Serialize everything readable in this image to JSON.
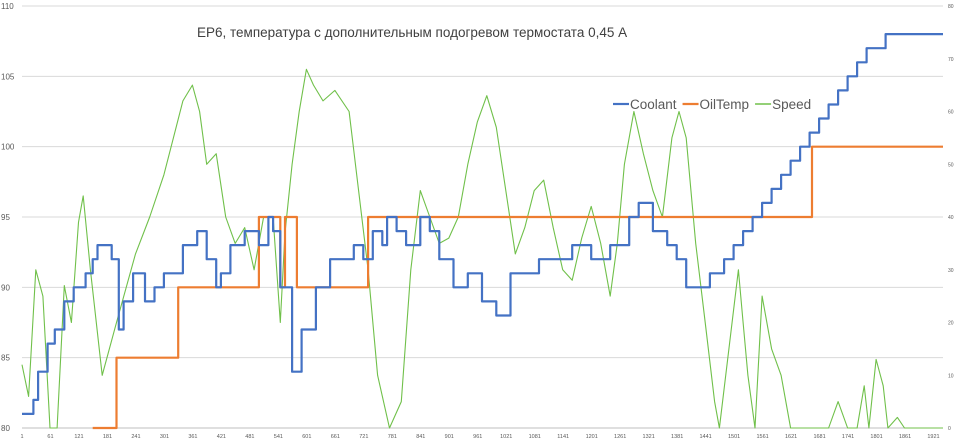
{
  "chart_data": {
    "type": "line",
    "title": "EP6, температура с дополнительным подогревом термостата 0,45 А",
    "xlabel": "",
    "ylabel": "",
    "x_range": [
      1,
      1941
    ],
    "x_ticks": [
      1,
      61,
      121,
      181,
      241,
      301,
      361,
      421,
      481,
      541,
      601,
      661,
      721,
      781,
      841,
      901,
      961,
      1021,
      1081,
      1141,
      1201,
      1261,
      1321,
      1381,
      1441,
      1501,
      1561,
      1621,
      1681,
      1741,
      1801,
      1861,
      1921
    ],
    "y_left": {
      "ylim": [
        80,
        110
      ],
      "ticks": [
        80,
        85,
        90,
        95,
        100,
        105,
        110
      ]
    },
    "y_right": {
      "ylim": [
        0,
        80
      ],
      "ticks": [
        0,
        10,
        20,
        30,
        40,
        50,
        60,
        70,
        80
      ]
    },
    "grid": "horizontal",
    "legend_position": "upper-right",
    "series": [
      {
        "name": "Coolant",
        "axis": "left",
        "color": "#4472C4",
        "step": true,
        "points": [
          [
            1,
            81
          ],
          [
            25,
            82
          ],
          [
            35,
            84
          ],
          [
            55,
            86
          ],
          [
            70,
            87
          ],
          [
            90,
            89
          ],
          [
            110,
            90
          ],
          [
            135,
            91
          ],
          [
            150,
            92
          ],
          [
            160,
            93
          ],
          [
            190,
            92
          ],
          [
            205,
            87
          ],
          [
            215,
            89
          ],
          [
            235,
            91
          ],
          [
            260,
            89
          ],
          [
            280,
            90
          ],
          [
            300,
            91
          ],
          [
            340,
            93
          ],
          [
            370,
            94
          ],
          [
            390,
            92
          ],
          [
            410,
            90
          ],
          [
            420,
            91
          ],
          [
            440,
            93
          ],
          [
            470,
            94
          ],
          [
            500,
            93
          ],
          [
            520,
            95
          ],
          [
            530,
            94
          ],
          [
            545,
            90
          ],
          [
            570,
            84
          ],
          [
            590,
            87
          ],
          [
            620,
            90
          ],
          [
            650,
            92
          ],
          [
            700,
            93
          ],
          [
            720,
            92
          ],
          [
            740,
            94
          ],
          [
            760,
            93
          ],
          [
            770,
            95
          ],
          [
            790,
            94
          ],
          [
            810,
            93
          ],
          [
            840,
            95
          ],
          [
            860,
            94
          ],
          [
            880,
            92
          ],
          [
            910,
            90
          ],
          [
            940,
            91
          ],
          [
            970,
            89
          ],
          [
            1000,
            88
          ],
          [
            1030,
            91
          ],
          [
            1060,
            91
          ],
          [
            1090,
            92
          ],
          [
            1130,
            92
          ],
          [
            1160,
            93
          ],
          [
            1200,
            92
          ],
          [
            1240,
            93
          ],
          [
            1280,
            95
          ],
          [
            1300,
            96
          ],
          [
            1330,
            94
          ],
          [
            1360,
            93
          ],
          [
            1380,
            92
          ],
          [
            1400,
            90
          ],
          [
            1430,
            90
          ],
          [
            1450,
            91
          ],
          [
            1480,
            92
          ],
          [
            1500,
            93
          ],
          [
            1520,
            94
          ],
          [
            1540,
            95
          ],
          [
            1560,
            96
          ],
          [
            1580,
            97
          ],
          [
            1600,
            98
          ],
          [
            1620,
            99
          ],
          [
            1640,
            100
          ],
          [
            1660,
            101
          ],
          [
            1680,
            102
          ],
          [
            1700,
            103
          ],
          [
            1720,
            104
          ],
          [
            1740,
            105
          ],
          [
            1760,
            106
          ],
          [
            1780,
            107
          ],
          [
            1800,
            107
          ],
          [
            1820,
            108
          ],
          [
            1850,
            108
          ],
          [
            1880,
            108
          ],
          [
            1941,
            108
          ]
        ]
      },
      {
        "name": "OilTemp",
        "axis": "left",
        "color": "#ED7D31",
        "step": true,
        "points": [
          [
            150,
            80
          ],
          [
            200,
            85
          ],
          [
            210,
            85
          ],
          [
            330,
            90
          ],
          [
            500,
            95
          ],
          [
            545,
            90
          ],
          [
            555,
            95
          ],
          [
            580,
            90
          ],
          [
            720,
            90
          ],
          [
            730,
            95
          ],
          [
            1660,
            95
          ],
          [
            1665,
            100
          ],
          [
            1941,
            100
          ]
        ]
      },
      {
        "name": "Speed",
        "axis": "right",
        "color": "#70C04A",
        "step": false,
        "points": [
          [
            1,
            12
          ],
          [
            15,
            6
          ],
          [
            30,
            30
          ],
          [
            45,
            25
          ],
          [
            60,
            0
          ],
          [
            75,
            0
          ],
          [
            90,
            27
          ],
          [
            105,
            20
          ],
          [
            120,
            39
          ],
          [
            130,
            44
          ],
          [
            145,
            30
          ],
          [
            170,
            10
          ],
          [
            200,
            20
          ],
          [
            240,
            33
          ],
          [
            270,
            40
          ],
          [
            300,
            48
          ],
          [
            320,
            55
          ],
          [
            340,
            62
          ],
          [
            360,
            65
          ],
          [
            375,
            60
          ],
          [
            390,
            50
          ],
          [
            410,
            52
          ],
          [
            430,
            40
          ],
          [
            450,
            35
          ],
          [
            470,
            38
          ],
          [
            490,
            30
          ],
          [
            510,
            40
          ],
          [
            530,
            40
          ],
          [
            545,
            20
          ],
          [
            555,
            37
          ],
          [
            570,
            50
          ],
          [
            585,
            60
          ],
          [
            600,
            68
          ],
          [
            615,
            65
          ],
          [
            635,
            62
          ],
          [
            660,
            64
          ],
          [
            690,
            60
          ],
          [
            710,
            45
          ],
          [
            730,
            30
          ],
          [
            750,
            10
          ],
          [
            775,
            0
          ],
          [
            800,
            5
          ],
          [
            820,
            30
          ],
          [
            840,
            45
          ],
          [
            860,
            40
          ],
          [
            880,
            35
          ],
          [
            900,
            36
          ],
          [
            920,
            40
          ],
          [
            940,
            50
          ],
          [
            960,
            58
          ],
          [
            980,
            63
          ],
          [
            1000,
            57
          ],
          [
            1020,
            45
          ],
          [
            1040,
            33
          ],
          [
            1060,
            38
          ],
          [
            1080,
            45
          ],
          [
            1100,
            47
          ],
          [
            1120,
            38
          ],
          [
            1140,
            30
          ],
          [
            1160,
            28
          ],
          [
            1180,
            36
          ],
          [
            1200,
            42
          ],
          [
            1220,
            35
          ],
          [
            1240,
            25
          ],
          [
            1255,
            35
          ],
          [
            1270,
            50
          ],
          [
            1290,
            60
          ],
          [
            1310,
            52
          ],
          [
            1330,
            45
          ],
          [
            1350,
            40
          ],
          [
            1370,
            55
          ],
          [
            1385,
            60
          ],
          [
            1400,
            55
          ],
          [
            1420,
            35
          ],
          [
            1440,
            20
          ],
          [
            1460,
            5
          ],
          [
            1470,
            0
          ],
          [
            1490,
            15
          ],
          [
            1510,
            30
          ],
          [
            1520,
            20
          ],
          [
            1530,
            10
          ],
          [
            1545,
            0
          ],
          [
            1560,
            25
          ],
          [
            1580,
            15
          ],
          [
            1600,
            10
          ],
          [
            1620,
            0
          ],
          [
            1700,
            0
          ],
          [
            1720,
            5
          ],
          [
            1740,
            0
          ],
          [
            1760,
            0
          ],
          [
            1775,
            8
          ],
          [
            1785,
            0
          ],
          [
            1800,
            13
          ],
          [
            1815,
            8
          ],
          [
            1825,
            0
          ],
          [
            1845,
            2
          ],
          [
            1860,
            0
          ],
          [
            1941,
            0
          ]
        ]
      }
    ]
  }
}
